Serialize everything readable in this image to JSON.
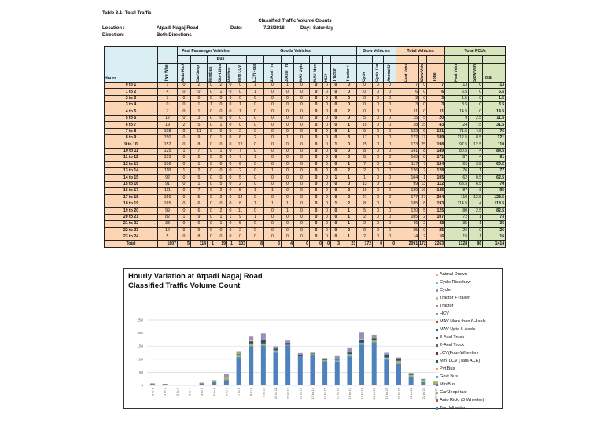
{
  "doc": {
    "table_title": "Table 3.1: Total Traffic",
    "subtitle": "Classified Traffic Volume Counts",
    "location_label": "Location :",
    "location": "Atpadi Nagaj Road",
    "direction_label": "Direction:",
    "direction": "Both Directions",
    "date_label": "Date:",
    "date": "7/28/2018",
    "day_label": "Day:",
    "day": "Saturday"
  },
  "table": {
    "groups": {
      "fast": "Fast Passenger Vehicles",
      "bus": "Bus",
      "goods": "Goods Vehicles",
      "slow": "Slow Vehicles",
      "total_vehicles": "Total Vehicles",
      "total_pcus": "Total PCUs"
    },
    "hours_header": "Hours",
    "columns": [
      "Two Wheeler",
      "Auto Rick. (3 Wheeler)",
      "Car/Jeep / taxi",
      "MiniBus",
      "Govt Bus",
      "Pvt Bus",
      "Mini LCV (Tata ACE)",
      "LCV(Four-Wheeler)",
      "2 Axel Truck",
      "3 Axel Truck",
      "MAV Upto 6-Axels",
      "MAV More than 6-Axels",
      "HCV",
      "Tractor",
      "Tractor + Trailer",
      "Cycle",
      "Cycle Rickshaw",
      "Animal Drawn",
      "Fast Vehicle",
      "Slow Vehicles",
      "Total",
      "Fast Vehicle",
      "Slow Vehicles",
      "Total"
    ],
    "rows": [
      {
        "hour": "0 to 1",
        "v": [
          1,
          0,
          2,
          0,
          2,
          0,
          0,
          1,
          0,
          1,
          0,
          0,
          0,
          0,
          0,
          0,
          0,
          0,
          7,
          0,
          7,
          13,
          0,
          13
        ]
      },
      {
        "hour": "1 to 2",
        "v": [
          4,
          0,
          0,
          0,
          1,
          0,
          0,
          1,
          0,
          0,
          0,
          0,
          0,
          0,
          0,
          0,
          0,
          0,
          6,
          0,
          6,
          6.5,
          0,
          6.5
        ]
      },
      {
        "hour": "2 to 3",
        "v": [
          3,
          0,
          0,
          0,
          0,
          0,
          0,
          0,
          0,
          0,
          0,
          0,
          0,
          0,
          0,
          0,
          0,
          0,
          3,
          0,
          3,
          1.5,
          0,
          1.5
        ]
      },
      {
        "hour": "3 to 4",
        "v": [
          0,
          0,
          1,
          1,
          0,
          0,
          1,
          0,
          0,
          0,
          0,
          0,
          0,
          0,
          0,
          0,
          0,
          0,
          3,
          0,
          3,
          3.5,
          0,
          3.5
        ]
      },
      {
        "hour": "4 to 5",
        "v": [
          7,
          0,
          1,
          0,
          0,
          0,
          1,
          0,
          0,
          0,
          0,
          0,
          0,
          0,
          2,
          0,
          0,
          0,
          11,
          0,
          11,
          14.5,
          0,
          14.5
        ]
      },
      {
        "hour": "5 to 6",
        "v": [
          12,
          0,
          3,
          0,
          0,
          0,
          0,
          0,
          0,
          0,
          0,
          0,
          0,
          0,
          0,
          5,
          0,
          0,
          15,
          5,
          20,
          9,
          2.5,
          11.5
        ]
      },
      {
        "hour": "6 to 7",
        "v": [
          19,
          2,
          5,
          0,
          1,
          0,
          0,
          0,
          0,
          0,
          0,
          0,
          0,
          0,
          1,
          15,
          0,
          0,
          28,
          15,
          43,
          24,
          7.5,
          31.5
        ]
      },
      {
        "hour": "7 to 8",
        "v": [
          108,
          0,
          11,
          0,
          0,
          0,
          2,
          0,
          0,
          0,
          0,
          0,
          0,
          0,
          1,
          9,
          0,
          0,
          122,
          9,
          131,
          71.5,
          4.5,
          76
        ]
      },
      {
        "hour": "8 to 9",
        "v": [
          150,
          0,
          9,
          0,
          1,
          0,
          6,
          2,
          0,
          1,
          0,
          0,
          0,
          0,
          3,
          17,
          0,
          0,
          172,
          17,
          189,
          112.5,
          8.5,
          121
        ]
      },
      {
        "hour": "9 to 10",
        "v": [
          152,
          0,
          8,
          0,
          0,
          0,
          12,
          0,
          0,
          0,
          0,
          0,
          0,
          1,
          0,
          25,
          0,
          0,
          173,
          25,
          198,
          97.5,
          12.5,
          110
        ]
      },
      {
        "hour": "10 to 11",
        "v": [
          125,
          1,
          7,
          0,
          1,
          0,
          7,
          0,
          0,
          0,
          0,
          0,
          0,
          0,
          0,
          8,
          0,
          0,
          141,
          8,
          149,
          80.5,
          4,
          84.5
        ]
      },
      {
        "hour": "11 to 12",
        "v": [
          153,
          0,
          2,
          0,
          0,
          0,
          7,
          1,
          0,
          0,
          0,
          0,
          0,
          0,
          0,
          8,
          0,
          0,
          163,
          8,
          171,
          87,
          4,
          91
        ]
      },
      {
        "hour": "12 to 13",
        "v": [
          109,
          0,
          1,
          0,
          0,
          0,
          6,
          0,
          0,
          0,
          0,
          0,
          0,
          0,
          1,
          7,
          0,
          0,
          117,
          7,
          124,
          66,
          3.5,
          69.5
        ]
      },
      {
        "hour": "13 to 14",
        "v": [
          118,
          1,
          2,
          0,
          0,
          0,
          2,
          0,
          1,
          0,
          0,
          0,
          0,
          0,
          2,
          2,
          0,
          0,
          126,
          2,
          128,
          76,
          1,
          77
        ]
      },
      {
        "hour": "14 to 15",
        "v": [
          92,
          0,
          5,
          0,
          0,
          0,
          5,
          0,
          0,
          0,
          0,
          0,
          0,
          1,
          1,
          1,
          0,
          0,
          104,
          1,
          105,
          62,
          0.5,
          62.5
        ]
      },
      {
        "hour": "15 to 16",
        "v": [
          91,
          0,
          1,
          0,
          5,
          0,
          2,
          0,
          0,
          0,
          0,
          0,
          0,
          0,
          0,
          13,
          0,
          0,
          99,
          13,
          112,
          63.5,
          6.5,
          70
        ]
      },
      {
        "hour": "16 to 17",
        "v": [
          111,
          0,
          7,
          0,
          2,
          0,
          5,
          1,
          1,
          0,
          0,
          0,
          0,
          0,
          2,
          16,
          0,
          0,
          129,
          16,
          145,
          87,
          8,
          95
        ]
      },
      {
        "hour": "17 to 18",
        "v": [
          156,
          0,
          5,
          0,
          2,
          0,
          12,
          0,
          0,
          0,
          0,
          0,
          0,
          0,
          2,
          27,
          0,
          0,
          177,
          27,
          204,
          110,
          13.5,
          123.5
        ]
      },
      {
        "hour": "18 to 19",
        "v": [
          165,
          0,
          6,
          0,
          0,
          0,
          8,
          1,
          1,
          1,
          0,
          0,
          0,
          1,
          2,
          8,
          0,
          0,
          185,
          8,
          193,
          114.5,
          4,
          118.5
        ]
      },
      {
        "hour": "19 to 20",
        "v": [
          99,
          0,
          6,
          0,
          2,
          0,
          11,
          0,
          0,
          1,
          0,
          0,
          0,
          0,
          1,
          5,
          0,
          0,
          120,
          5,
          125,
          80,
          2.5,
          82.5
        ]
      },
      {
        "hour": "20 to 21",
        "v": [
          82,
          1,
          9,
          0,
          1,
          1,
          9,
          1,
          0,
          0,
          0,
          0,
          0,
          0,
          1,
          2,
          0,
          0,
          105,
          2,
          107,
          72,
          1,
          73
        ]
      },
      {
        "hour": "21 to 22",
        "v": [
          33,
          0,
          6,
          0,
          1,
          0,
          5,
          0,
          0,
          0,
          0,
          0,
          0,
          0,
          1,
          2,
          0,
          0,
          46,
          2,
          48,
          35,
          1,
          36
        ]
      },
      {
        "hour": "22 to 23",
        "v": [
          12,
          0,
          9,
          0,
          0,
          0,
          2,
          0,
          0,
          0,
          0,
          0,
          0,
          0,
          2,
          0,
          0,
          0,
          25,
          0,
          25,
          26,
          0,
          26
        ]
      },
      {
        "hour": "23 to 24",
        "v": [
          5,
          0,
          8,
          0,
          0,
          0,
          0,
          0,
          0,
          0,
          0,
          0,
          0,
          0,
          1,
          2,
          0,
          0,
          14,
          2,
          16,
          15,
          1,
          16
        ]
      },
      {
        "hour": "Total",
        "v": [
          1807,
          5,
          114,
          1,
          19,
          1,
          103,
          8,
          3,
          4,
          0,
          0,
          0,
          3,
          23,
          172,
          0,
          0,
          2091,
          172,
          2263,
          1328,
          86,
          1414
        ]
      }
    ]
  },
  "chart_data": {
    "type": "bar",
    "stacked": true,
    "title": "Hourly Variation at Atpadi Nagaj Road",
    "subtitle": "Classified Traffic Volume Count",
    "ylim": [
      0,
      250
    ],
    "yticks": [
      0,
      50,
      100,
      150,
      200,
      250
    ],
    "grid": true,
    "legend_position": "right",
    "categories": [
      "0 to 1",
      "1 to 2",
      "2 to 3",
      "3 to 4",
      "4 to 5",
      "5 to 6",
      "6 to 7",
      "7 to 8",
      "8 to 9",
      "9 to 10",
      "10 to 11",
      "11 to 12",
      "12 to 13",
      "13 to 14",
      "14 to 15",
      "15 to 16",
      "16 to 17",
      "17 to 18",
      "18 to 19",
      "19 to 20",
      "20 to 21",
      "21 to 22",
      "22 to 23",
      "23 to 24"
    ],
    "series": [
      {
        "name": "Two Wheeler",
        "color": "#4f81bd",
        "values": [
          1,
          4,
          3,
          0,
          7,
          12,
          19,
          108,
          150,
          152,
          125,
          153,
          109,
          118,
          92,
          91,
          111,
          156,
          165,
          99,
          82,
          33,
          12,
          5
        ]
      },
      {
        "name": "Auto Rick. (3 Wheeler)",
        "color": "#c0504d",
        "values": [
          0,
          0,
          0,
          0,
          0,
          0,
          2,
          0,
          0,
          0,
          1,
          0,
          0,
          1,
          0,
          0,
          0,
          0,
          0,
          0,
          1,
          0,
          0,
          0
        ]
      },
      {
        "name": "Car/Jeep/ taxi",
        "color": "#9bbb59",
        "values": [
          2,
          0,
          0,
          1,
          1,
          3,
          5,
          11,
          9,
          8,
          7,
          2,
          1,
          2,
          5,
          1,
          7,
          5,
          6,
          6,
          9,
          6,
          9,
          8
        ]
      },
      {
        "name": "MiniBus",
        "color": "#8064a2",
        "values": [
          0,
          0,
          0,
          1,
          0,
          0,
          0,
          0,
          0,
          0,
          0,
          0,
          0,
          0,
          0,
          0,
          0,
          0,
          0,
          0,
          0,
          0,
          0,
          0
        ]
      },
      {
        "name": "Govt Bus",
        "color": "#4bacc6",
        "values": [
          2,
          1,
          0,
          0,
          0,
          0,
          1,
          0,
          1,
          0,
          1,
          0,
          0,
          0,
          0,
          5,
          2,
          2,
          0,
          2,
          1,
          1,
          0,
          0
        ]
      },
      {
        "name": "Pvt Bus",
        "color": "#f79646",
        "values": [
          0,
          0,
          0,
          0,
          0,
          0,
          0,
          0,
          0,
          0,
          0,
          0,
          0,
          0,
          0,
          0,
          0,
          0,
          0,
          0,
          1,
          0,
          0,
          0
        ]
      },
      {
        "name": "Mini LCV (Tata ACE)",
        "color": "#2c4d75",
        "values": [
          0,
          0,
          0,
          1,
          1,
          0,
          0,
          2,
          6,
          12,
          7,
          7,
          6,
          2,
          5,
          2,
          5,
          12,
          8,
          11,
          9,
          5,
          2,
          0
        ]
      },
      {
        "name": "LCV(Four-Wheeler)",
        "color": "#772c2a",
        "values": [
          1,
          1,
          0,
          0,
          0,
          0,
          0,
          0,
          2,
          0,
          0,
          1,
          0,
          0,
          0,
          0,
          1,
          0,
          1,
          0,
          1,
          0,
          0,
          0
        ]
      },
      {
        "name": "2-Axel Truck",
        "color": "#5f7530",
        "values": [
          0,
          0,
          0,
          0,
          0,
          0,
          0,
          0,
          0,
          0,
          0,
          0,
          0,
          1,
          0,
          0,
          1,
          0,
          1,
          0,
          0,
          0,
          0,
          0
        ]
      },
      {
        "name": "3-Axel Truck",
        "color": "#4d3b62",
        "values": [
          1,
          0,
          0,
          0,
          0,
          0,
          0,
          0,
          1,
          0,
          0,
          0,
          0,
          0,
          0,
          0,
          0,
          0,
          1,
          1,
          0,
          0,
          0,
          0
        ]
      },
      {
        "name": "MAV Upto 6-Axels",
        "color": "#276a7c",
        "values": [
          0,
          0,
          0,
          0,
          0,
          0,
          0,
          0,
          0,
          0,
          0,
          0,
          0,
          0,
          0,
          0,
          0,
          0,
          0,
          0,
          0,
          0,
          0,
          0
        ]
      },
      {
        "name": "MAV More than 6-Axels",
        "color": "#b65708",
        "values": [
          0,
          0,
          0,
          0,
          0,
          0,
          0,
          0,
          0,
          0,
          0,
          0,
          0,
          0,
          0,
          0,
          0,
          0,
          0,
          0,
          0,
          0,
          0,
          0
        ]
      },
      {
        "name": "HCV",
        "color": "#729aca",
        "values": [
          0,
          0,
          0,
          0,
          0,
          0,
          0,
          0,
          0,
          0,
          0,
          0,
          0,
          0,
          0,
          0,
          0,
          0,
          0,
          0,
          0,
          0,
          0,
          0
        ]
      },
      {
        "name": "Tractor",
        "color": "#cd7371",
        "values": [
          0,
          0,
          0,
          0,
          0,
          0,
          0,
          0,
          0,
          1,
          0,
          0,
          0,
          0,
          1,
          0,
          0,
          0,
          1,
          0,
          0,
          0,
          0,
          0
        ]
      },
      {
        "name": "Tractor +Trailer",
        "color": "#afc97a",
        "values": [
          0,
          0,
          0,
          0,
          2,
          0,
          1,
          1,
          3,
          0,
          0,
          0,
          1,
          2,
          1,
          0,
          2,
          2,
          2,
          1,
          1,
          1,
          2,
          1
        ]
      },
      {
        "name": "Cycle",
        "color": "#a18cb5",
        "values": [
          0,
          0,
          0,
          0,
          0,
          5,
          15,
          9,
          17,
          25,
          8,
          8,
          7,
          2,
          1,
          13,
          16,
          27,
          8,
          5,
          2,
          2,
          0,
          2
        ]
      },
      {
        "name": "Cycle Rickshaw",
        "color": "#6fbdd6",
        "values": [
          0,
          0,
          0,
          0,
          0,
          0,
          0,
          0,
          0,
          0,
          0,
          0,
          0,
          0,
          0,
          0,
          0,
          0,
          0,
          0,
          0,
          0,
          0,
          0
        ]
      },
      {
        "name": "Animal Drawn",
        "color": "#f9ab6b",
        "values": [
          0,
          0,
          0,
          0,
          0,
          0,
          0,
          0,
          0,
          0,
          0,
          0,
          0,
          0,
          0,
          0,
          0,
          0,
          0,
          0,
          0,
          0,
          0,
          0
        ]
      }
    ]
  }
}
